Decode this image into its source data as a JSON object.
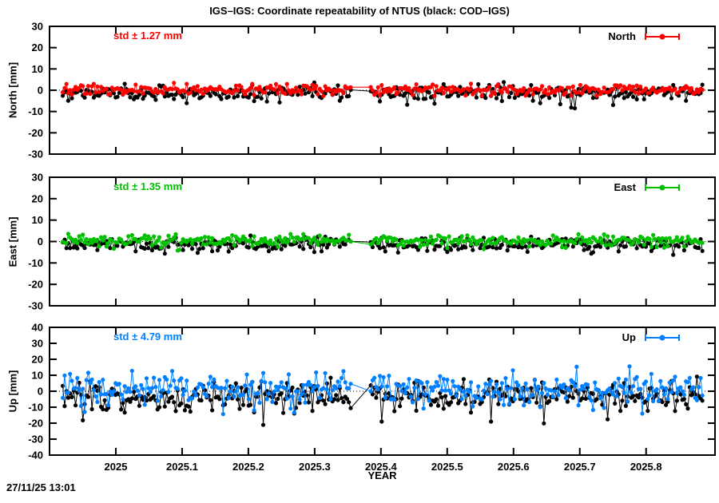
{
  "title": "IGS–IGS: Coordinate repeatability of NTUS (black: COD–IGS)",
  "timestamp": "27/11/25 13:01",
  "x_axis": {
    "label": "YEAR",
    "min": 2024.9,
    "max": 2025.904,
    "ticks": [
      2025,
      2025.1,
      2025.2,
      2025.3,
      2025.4,
      2025.5,
      2025.6,
      2025.7,
      2025.8
    ],
    "tick_labels": [
      "2025",
      "2025.1",
      "2025.2",
      "2025.3",
      "2025.4",
      "2025.5",
      "2025.6",
      "2025.7",
      "2025.8"
    ]
  },
  "sampling": {
    "start": 2024.92,
    "end": 2025.885,
    "n": 352,
    "gap": [
      2025.357,
      2025.383
    ]
  },
  "chart_data": [
    {
      "type": "scatter",
      "panel": "North",
      "ylabel": "North [mm]",
      "ylim": [
        -30,
        30
      ],
      "ytick_step": 10,
      "std_label": "std ± 1.27 mm",
      "legend": "North",
      "color": "#ff0000",
      "series": [
        {
          "name": "COD-IGS",
          "color": "#000000",
          "mean": -1.4,
          "std": 1.8,
          "outlier_prob": 0.012,
          "outlier_scale": 1.0,
          "outlier_sign": -1
        },
        {
          "name": "North",
          "color": "#ff0000",
          "mean": 0.2,
          "std": 1.27,
          "outlier_prob": 0.01,
          "outlier_scale": 0.8,
          "outlier_sign": 0
        }
      ]
    },
    {
      "type": "scatter",
      "panel": "East",
      "ylabel": "East [mm]",
      "ylim": [
        -30,
        30
      ],
      "ytick_step": 10,
      "std_label": "std ± 1.35 mm",
      "legend": "East",
      "color": "#00c000",
      "series": [
        {
          "name": "COD-IGS",
          "color": "#000000",
          "mean": -1.2,
          "std": 1.7,
          "outlier_prob": 0.01,
          "outlier_scale": 0.8,
          "outlier_sign": -1
        },
        {
          "name": "East",
          "color": "#00c000",
          "mean": 0.4,
          "std": 1.35,
          "outlier_prob": 0.01,
          "outlier_scale": 0.8,
          "outlier_sign": 0
        }
      ]
    },
    {
      "type": "scatter",
      "panel": "Up",
      "ylabel": "Up [mm]",
      "ylim": [
        -40,
        40
      ],
      "ytick_step": 10,
      "std_label": "std ± 4.79 mm",
      "legend": "Up",
      "color": "#0080ff",
      "series": [
        {
          "name": "COD-IGS",
          "color": "#000000",
          "mean": -3.5,
          "std": 4.5,
          "outlier_prob": 0.03,
          "outlier_scale": 1.0,
          "outlier_sign": -1
        },
        {
          "name": "Up",
          "color": "#0080ff",
          "mean": 1.0,
          "std": 4.79,
          "outlier_prob": 0.02,
          "outlier_scale": 0.9,
          "outlier_sign": 0
        }
      ]
    }
  ]
}
